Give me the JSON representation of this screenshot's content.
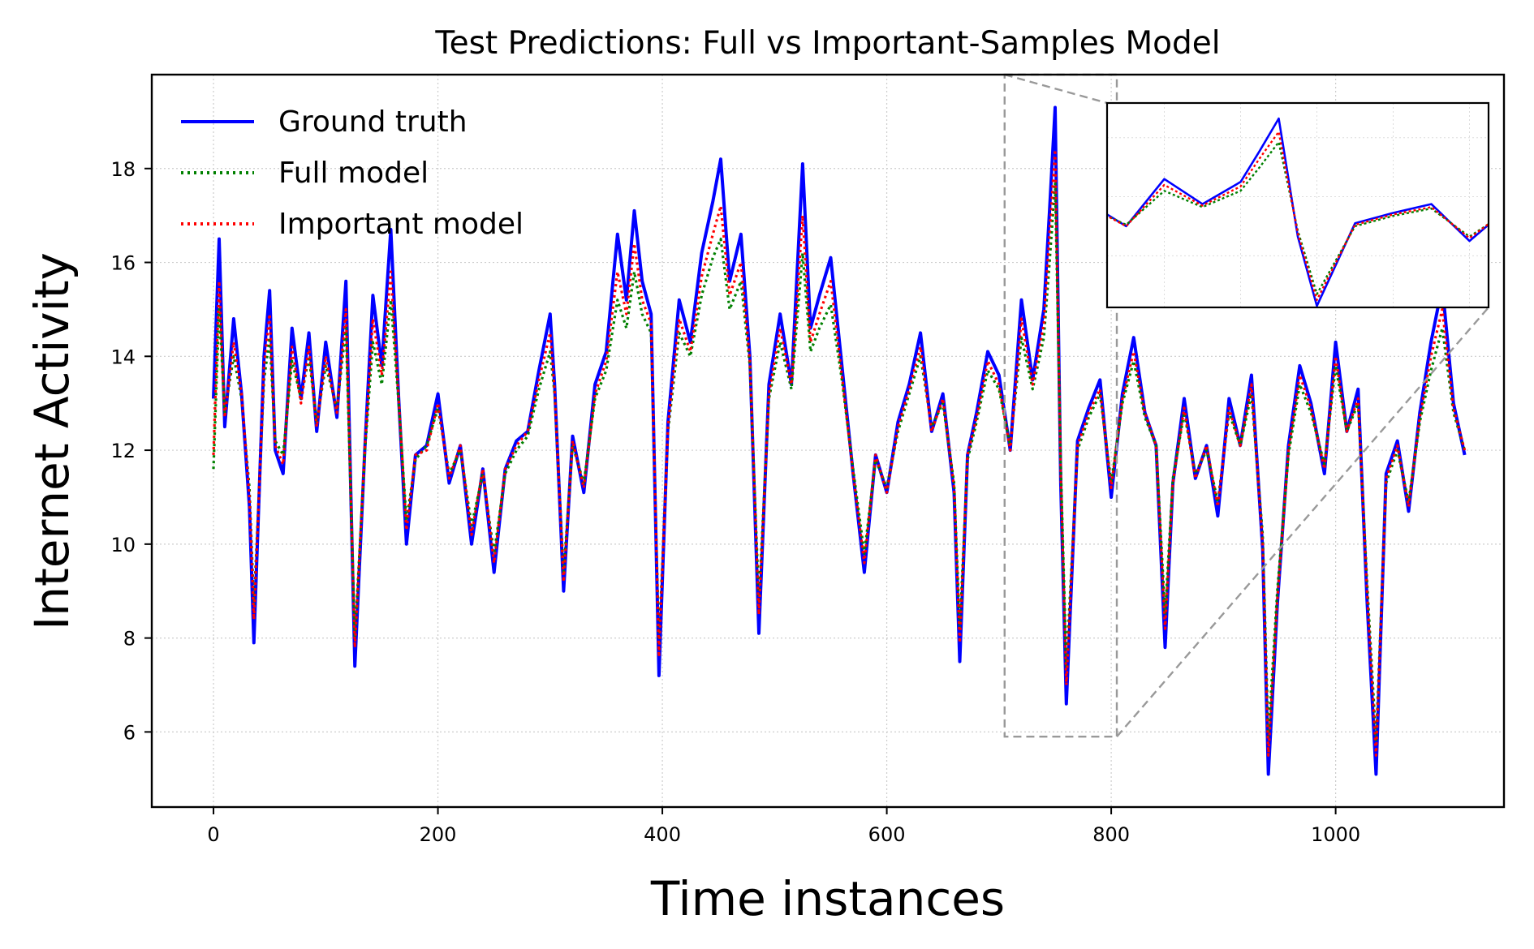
{
  "chart_data": {
    "type": "line",
    "title": "Test Predictions: Full vs Important-Samples Model",
    "xlabel": "Time instances",
    "ylabel": "Internet Activity",
    "xlim": [
      -55,
      1150
    ],
    "ylim": [
      4.4,
      20.0
    ],
    "xticks": [
      0,
      200,
      400,
      600,
      800,
      1000
    ],
    "xtick_labels": [
      "0",
      "200",
      "400",
      "600",
      "800",
      "1000"
    ],
    "yticks": [
      6,
      8,
      10,
      12,
      14,
      16,
      18
    ],
    "ytick_labels": [
      "6",
      "8",
      "10",
      "12",
      "14",
      "16",
      "18"
    ],
    "grid": true,
    "legend_position": "top-left",
    "colors": {
      "ground_truth": "#0000ff",
      "full": "#008000",
      "important": "#ff0000",
      "zoom": "#999999"
    },
    "series": [
      {
        "name": "Ground truth",
        "style": "solid",
        "color": "#0000ff",
        "x": [
          0,
          5,
          10,
          18,
          25,
          32,
          36,
          40,
          45,
          50,
          55,
          62,
          70,
          78,
          85,
          92,
          100,
          110,
          118,
          126,
          135,
          142,
          150,
          158,
          165,
          172,
          180,
          190,
          200,
          210,
          220,
          230,
          240,
          250,
          260,
          270,
          280,
          290,
          300,
          304,
          312,
          320,
          330,
          340,
          350,
          360,
          368,
          375,
          382,
          390,
          397,
          405,
          415,
          425,
          435,
          445,
          452,
          460,
          470,
          478,
          486,
          495,
          505,
          515,
          525,
          532,
          540,
          550,
          560,
          570,
          580,
          590,
          600,
          610,
          620,
          630,
          640,
          650,
          660,
          665,
          672,
          680,
          690,
          700,
          710,
          720,
          730,
          740,
          745,
          750,
          755,
          760,
          770,
          780,
          790,
          800,
          810,
          820,
          830,
          840,
          848,
          855,
          865,
          875,
          885,
          895,
          905,
          915,
          925,
          935,
          940,
          948,
          958,
          968,
          978,
          990,
          1000,
          1010,
          1020,
          1028,
          1036,
          1045,
          1055,
          1065,
          1075,
          1085,
          1095,
          1105,
          1115
        ],
        "y": [
          13.1,
          16.5,
          12.5,
          14.8,
          13.2,
          10.8,
          7.9,
          10.6,
          14.0,
          15.4,
          12.0,
          11.5,
          14.6,
          13.1,
          14.5,
          12.4,
          14.3,
          12.7,
          15.6,
          7.4,
          12.1,
          15.3,
          13.8,
          16.7,
          13.1,
          10.0,
          11.9,
          12.1,
          13.2,
          11.3,
          12.1,
          10.0,
          11.6,
          9.4,
          11.6,
          12.2,
          12.4,
          13.7,
          14.9,
          13.4,
          9.0,
          12.3,
          11.1,
          13.4,
          14.1,
          16.6,
          15.2,
          17.1,
          15.6,
          14.9,
          7.2,
          12.6,
          15.2,
          14.3,
          16.2,
          17.3,
          18.2,
          15.6,
          16.6,
          14.0,
          8.1,
          13.4,
          14.9,
          13.4,
          18.1,
          14.6,
          15.3,
          16.1,
          13.8,
          11.5,
          9.4,
          11.9,
          11.1,
          12.6,
          13.4,
          14.5,
          12.4,
          13.2,
          11.1,
          7.5,
          11.9,
          12.8,
          14.1,
          13.6,
          12.0,
          15.2,
          13.5,
          15.0,
          17.1,
          19.3,
          11.3,
          6.6,
          12.2,
          12.9,
          13.5,
          11.0,
          13.2,
          14.4,
          12.8,
          12.1,
          7.8,
          11.3,
          13.1,
          11.4,
          12.1,
          10.6,
          13.1,
          12.1,
          13.6,
          9.9,
          5.1,
          8.7,
          12.1,
          13.8,
          13.0,
          11.5,
          14.3,
          12.4,
          13.3,
          8.8,
          5.1,
          11.5,
          12.2,
          10.7,
          12.8,
          14.3,
          15.5,
          13.0,
          11.9
        ]
      },
      {
        "name": "Full model",
        "style": "dotted",
        "color": "#008000",
        "x": [
          0,
          5,
          10,
          18,
          25,
          32,
          36,
          40,
          45,
          50,
          55,
          62,
          70,
          78,
          85,
          92,
          100,
          110,
          118,
          126,
          135,
          142,
          150,
          158,
          165,
          172,
          180,
          190,
          200,
          210,
          220,
          230,
          240,
          250,
          260,
          270,
          280,
          290,
          300,
          304,
          312,
          320,
          330,
          340,
          350,
          360,
          368,
          375,
          382,
          390,
          397,
          405,
          415,
          425,
          435,
          445,
          452,
          460,
          470,
          478,
          486,
          495,
          505,
          515,
          525,
          532,
          540,
          550,
          560,
          570,
          580,
          590,
          600,
          610,
          620,
          630,
          640,
          650,
          660,
          665,
          672,
          680,
          690,
          700,
          710,
          720,
          730,
          740,
          745,
          750,
          755,
          760,
          770,
          780,
          790,
          800,
          810,
          820,
          830,
          840,
          848,
          855,
          865,
          875,
          885,
          895,
          905,
          915,
          925,
          935,
          940,
          948,
          958,
          968,
          978,
          990,
          1000,
          1010,
          1020,
          1028,
          1036,
          1045,
          1055,
          1065,
          1075,
          1085,
          1095,
          1105,
          1115
        ],
        "y": [
          11.6,
          15.0,
          12.8,
          14.0,
          13.1,
          11.2,
          8.7,
          10.8,
          13.5,
          14.4,
          12.2,
          11.9,
          13.9,
          13.1,
          14.0,
          12.6,
          13.8,
          12.9,
          14.6,
          8.0,
          12.0,
          14.3,
          13.4,
          15.2,
          13.0,
          10.5,
          11.8,
          12.1,
          12.9,
          11.5,
          12.0,
          10.4,
          11.5,
          9.8,
          11.5,
          12.0,
          12.3,
          13.3,
          14.1,
          13.2,
          9.4,
          12.1,
          11.3,
          13.1,
          13.7,
          15.2,
          14.6,
          15.8,
          14.9,
          14.5,
          7.9,
          12.4,
          14.5,
          14.0,
          15.3,
          16.1,
          16.5,
          15.0,
          15.6,
          13.8,
          8.8,
          13.1,
          14.3,
          13.3,
          16.2,
          14.1,
          14.6,
          15.1,
          13.5,
          11.6,
          9.8,
          11.8,
          11.2,
          12.4,
          13.2,
          14.0,
          12.5,
          13.0,
          11.3,
          8.2,
          11.8,
          12.6,
          13.7,
          13.3,
          12.1,
          14.4,
          13.3,
          14.4,
          16.0,
          17.7,
          11.7,
          7.4,
          12.0,
          12.7,
          13.2,
          11.3,
          13.0,
          13.9,
          12.7,
          12.1,
          8.5,
          11.4,
          12.8,
          11.5,
          12.0,
          10.9,
          12.8,
          12.1,
          13.2,
          10.2,
          5.9,
          9.0,
          11.9,
          13.4,
          12.8,
          11.7,
          13.8,
          12.4,
          13.0,
          9.2,
          5.8,
          11.3,
          12.0,
          10.9,
          12.6,
          13.7,
          14.6,
          12.8,
          12.0
        ]
      },
      {
        "name": "Important model",
        "style": "dotted",
        "color": "#ff0000",
        "x": [
          0,
          5,
          10,
          18,
          25,
          32,
          36,
          40,
          45,
          50,
          55,
          62,
          70,
          78,
          85,
          92,
          100,
          110,
          118,
          126,
          135,
          142,
          150,
          158,
          165,
          172,
          180,
          190,
          200,
          210,
          220,
          230,
          240,
          250,
          260,
          270,
          280,
          290,
          300,
          304,
          312,
          320,
          330,
          340,
          350,
          360,
          368,
          375,
          382,
          390,
          397,
          405,
          415,
          425,
          435,
          445,
          452,
          460,
          470,
          478,
          486,
          495,
          505,
          515,
          525,
          532,
          540,
          550,
          560,
          570,
          580,
          590,
          600,
          610,
          620,
          630,
          640,
          650,
          660,
          665,
          672,
          680,
          690,
          700,
          710,
          720,
          730,
          740,
          745,
          750,
          755,
          760,
          770,
          780,
          790,
          800,
          810,
          820,
          830,
          840,
          848,
          855,
          865,
          875,
          885,
          895,
          905,
          915,
          925,
          935,
          940,
          948,
          958,
          968,
          978,
          990,
          1000,
          1010,
          1020,
          1028,
          1036,
          1045,
          1055,
          1065,
          1075,
          1085,
          1095,
          1105,
          1115
        ],
        "y": [
          11.9,
          15.6,
          12.7,
          14.3,
          13.2,
          11.0,
          8.4,
          10.7,
          13.8,
          14.9,
          12.1,
          11.7,
          14.2,
          13.0,
          14.2,
          12.5,
          14.0,
          12.8,
          15.0,
          7.8,
          12.1,
          14.8,
          13.6,
          15.8,
          13.1,
          10.3,
          11.9,
          12.0,
          13.0,
          11.4,
          12.1,
          10.2,
          11.6,
          9.6,
          11.6,
          12.1,
          12.4,
          13.5,
          14.5,
          13.3,
          9.2,
          12.2,
          11.2,
          13.2,
          13.9,
          15.8,
          14.9,
          16.4,
          15.2,
          14.7,
          7.6,
          12.5,
          14.8,
          14.1,
          15.7,
          16.6,
          17.2,
          15.3,
          16.0,
          13.9,
          8.5,
          13.2,
          14.6,
          13.4,
          17.0,
          14.3,
          14.9,
          15.6,
          13.6,
          11.5,
          9.6,
          11.9,
          11.1,
          12.5,
          13.3,
          14.2,
          12.4,
          13.1,
          11.2,
          7.9,
          11.9,
          12.7,
          13.9,
          13.4,
          12.0,
          14.8,
          13.4,
          14.7,
          16.6,
          18.4,
          11.5,
          7.0,
          12.1,
          12.8,
          13.3,
          11.2,
          13.1,
          14.1,
          12.8,
          12.1,
          8.2,
          11.3,
          12.9,
          11.4,
          12.1,
          10.8,
          12.9,
          12.1,
          13.4,
          10.0,
          5.5,
          8.8,
          12.0,
          13.6,
          12.9,
          11.6,
          14.0,
          12.4,
          13.1,
          9.0,
          5.5,
          11.4,
          12.1,
          10.8,
          12.7,
          14.0,
          15.0,
          12.9,
          12.0
        ]
      }
    ],
    "inset": {
      "x_range": [
        705,
        805
      ],
      "y_range": [
        5.9,
        20.0
      ]
    }
  }
}
